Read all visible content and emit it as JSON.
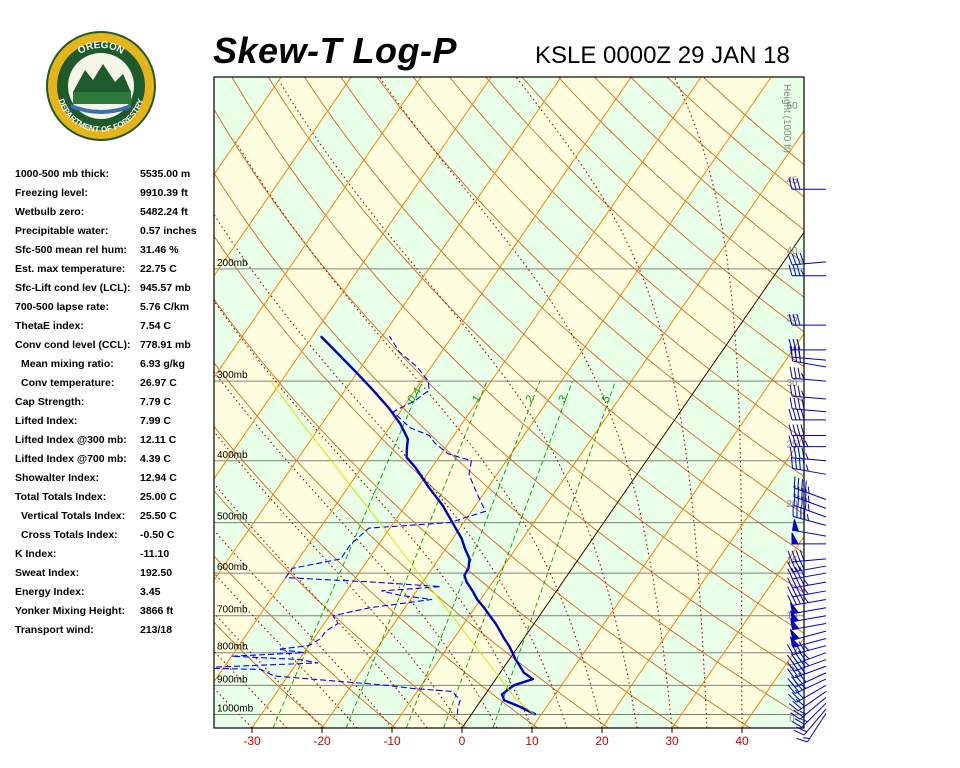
{
  "header": {
    "title": "Skew-T Log-P",
    "station": "KSLE 0000Z 29 JAN 18",
    "logo_text_top": "OREGON",
    "logo_text_bottom": "DEPARTMENT OF FORESTRY"
  },
  "indices": [
    {
      "label": "1000-500 mb thick:",
      "value": "5535.00 m"
    },
    {
      "label": "Freezing level:",
      "value": "9910.39 ft"
    },
    {
      "label": "Wetbulb zero:",
      "value": "5482.24 ft"
    },
    {
      "label": "Precipitable water:",
      "value": "0.57 inches"
    },
    {
      "label": "Sfc-500 mean rel hum:",
      "value": "31.46 %"
    },
    {
      "label": "Est. max temperature:",
      "value": "22.75 C"
    },
    {
      "label": "Sfc-Lift cond lev (LCL):",
      "value": "945.57 mb"
    },
    {
      "label": "700-500 lapse rate:",
      "value": "5.76 C/km"
    },
    {
      "label": "ThetaE index:",
      "value": "7.54 C"
    },
    {
      "label": "Conv cond level (CCL):",
      "value": "778.91 mb"
    },
    {
      "label": "Mean mixing ratio:",
      "value": "6.93 g/kg",
      "indent": true
    },
    {
      "label": "Conv temperature:",
      "value": "26.97 C",
      "indent": true
    },
    {
      "label": "Cap Strength:",
      "value": "7.79 C"
    },
    {
      "label": "Lifted Index:",
      "value": "7.99 C"
    },
    {
      "label": "Lifted Index @300 mb:",
      "value": "12.11 C"
    },
    {
      "label": "Lifted Index @700 mb:",
      "value": "4.39 C"
    },
    {
      "label": "Showalter Index:",
      "value": "12.94 C"
    },
    {
      "label": "Total Totals Index:",
      "value": "25.00 C"
    },
    {
      "label": "Vertical Totals Index:",
      "value": "25.50 C",
      "indent": true
    },
    {
      "label": "Cross Totals Index:",
      "value": "-0.50 C",
      "indent": true
    },
    {
      "label": "K Index:",
      "value": "-11.10"
    },
    {
      "label": "Sweat Index:",
      "value": "192.50"
    },
    {
      "label": "Energy Index:",
      "value": "3.45"
    },
    {
      "label": "Yonker Mixing Height:",
      "value": "3866 ft"
    },
    {
      "label": "Transport wind:",
      "value": "213/18"
    }
  ],
  "colors": {
    "temperature": "#0000c8",
    "dewpoint": "#0000ff",
    "parcel": "#e0e000",
    "isotherm": "#ff8000",
    "dry_adiabat": "#d2691e",
    "moist_adiabat": "#b00000",
    "mixing_ratio": "#00a000",
    "isobar": "#808080",
    "band_yellow": "#ffffe0",
    "band_green": "#e8ffe8",
    "x_tick_text": "#cc0000"
  },
  "chart_data": {
    "type": "line",
    "title": "Skew-T Log-P",
    "xlabel": "",
    "ylabel": "",
    "x_unit": "C",
    "xlim": [
      -35,
      48
    ],
    "ylim": [
      1050,
      100
    ],
    "y_scale": "log",
    "x_ticks": [
      -30,
      -20,
      -10,
      0,
      10,
      20,
      30,
      40
    ],
    "x_tick_labels": [
      "-30",
      "-20",
      "-10",
      "0",
      "10",
      "20",
      "30",
      "40"
    ],
    "pressure_levels": [
      200,
      300,
      400,
      500,
      600,
      700,
      800,
      900,
      1000
    ],
    "pressure_labels": [
      "200mb",
      "300mb",
      "400mb",
      "500mb",
      "600mb",
      "700mb",
      "800mb",
      "900mb",
      "1000mb"
    ],
    "height_axis": {
      "label": "Height (1000 ft)",
      "ticks": [
        0,
        5,
        10,
        15,
        20,
        25,
        30,
        35,
        40,
        45,
        50
      ],
      "tick_labels": [
        "0",
        "5",
        "10",
        "15",
        "20",
        "25",
        "30",
        "35",
        "40",
        "45",
        "50"
      ]
    },
    "mixing_ratio_labels": [
      {
        "value": 0.4,
        "text": "0.4"
      },
      {
        "value": 1,
        "text": "1"
      },
      {
        "value": 2,
        "text": "2"
      },
      {
        "value": 3,
        "text": "3"
      },
      {
        "value": 5,
        "text": "5"
      }
    ],
    "series": [
      {
        "role": "temperature",
        "points": [
          [
            1000,
            9.2
          ],
          [
            970,
            5.9
          ],
          [
            950,
            3.3
          ],
          [
            930,
            2.4
          ],
          [
            900,
            3.2
          ],
          [
            880,
            5.3
          ],
          [
            860,
            3.4
          ],
          [
            840,
            2.2
          ],
          [
            820,
            0.9
          ],
          [
            800,
            -0.2
          ],
          [
            780,
            -1.4
          ],
          [
            760,
            -2.8
          ],
          [
            740,
            -4.1
          ],
          [
            720,
            -5.5
          ],
          [
            700,
            -7.1
          ],
          [
            680,
            -8.7
          ],
          [
            660,
            -10.5
          ],
          [
            640,
            -12.0
          ],
          [
            620,
            -13.7
          ],
          [
            605,
            -14.7
          ],
          [
            590,
            -14.8
          ],
          [
            570,
            -15.6
          ],
          [
            550,
            -17.2
          ],
          [
            530,
            -18.7
          ],
          [
            500,
            -21.6
          ],
          [
            470,
            -24.7
          ],
          [
            440,
            -28.5
          ],
          [
            410,
            -32.3
          ],
          [
            395,
            -34.6
          ],
          [
            380,
            -35.6
          ],
          [
            370,
            -36.2
          ],
          [
            350,
            -38.8
          ],
          [
            330,
            -42.1
          ],
          [
            310,
            -46.0
          ],
          [
            290,
            -50.3
          ],
          [
            270,
            -55.0
          ],
          [
            255,
            -58.8
          ]
        ]
      },
      {
        "role": "dewpoint",
        "points": [
          [
            1000,
            -2.0
          ],
          [
            980,
            -2.5
          ],
          [
            950,
            -3.0
          ],
          [
            920,
            -5.0
          ],
          [
            910,
            -11.0
          ],
          [
            900,
            -15.0
          ],
          [
            870,
            -32.0
          ],
          [
            850,
            -34.5
          ],
          [
            845,
            -44.0
          ],
          [
            830,
            -27.0
          ],
          [
            820,
            -30.0
          ],
          [
            810,
            -40.0
          ],
          [
            800,
            -30.0
          ],
          [
            790,
            -34.0
          ],
          [
            780,
            -30.0
          ],
          [
            760,
            -29.0
          ],
          [
            740,
            -29.0
          ],
          [
            720,
            -28.0
          ],
          [
            700,
            -29.5
          ],
          [
            680,
            -25.0
          ],
          [
            660,
            -17.0
          ],
          [
            650,
            -22.0
          ],
          [
            640,
            -25.0
          ],
          [
            630,
            -17.0
          ],
          [
            620,
            -27.0
          ],
          [
            610,
            -40.0
          ],
          [
            590,
            -40.0
          ],
          [
            570,
            -34.0
          ],
          [
            540,
            -34.0
          ],
          [
            510,
            -33.0
          ],
          [
            500,
            -22.0
          ],
          [
            480,
            -18.0
          ],
          [
            460,
            -20.0
          ],
          [
            440,
            -22.0
          ],
          [
            420,
            -24.0
          ],
          [
            400,
            -25.0
          ],
          [
            390,
            -29.0
          ],
          [
            375,
            -32.0
          ],
          [
            365,
            -33.5
          ],
          [
            355,
            -37.0
          ],
          [
            345,
            -39.0
          ],
          [
            335,
            -41.0
          ],
          [
            322,
            -39.0
          ],
          [
            310,
            -38.0
          ],
          [
            300,
            -39.0
          ],
          [
            285,
            -42.0
          ],
          [
            270,
            -46.0
          ],
          [
            255,
            -49.0
          ]
        ]
      },
      {
        "role": "parcel",
        "points": [
          [
            1000,
            9.0
          ],
          [
            960,
            6.0
          ],
          [
            945,
            4.8
          ],
          [
            900,
            2.0
          ],
          [
            850,
            -1.3
          ],
          [
            800,
            -4.8
          ],
          [
            750,
            -8.5
          ],
          [
            700,
            -12.5
          ],
          [
            650,
            -16.8
          ],
          [
            600,
            -21.5
          ],
          [
            550,
            -26.5
          ],
          [
            500,
            -32.0
          ],
          [
            450,
            -38.2
          ],
          [
            400,
            -45.0
          ],
          [
            350,
            -52.8
          ],
          [
            300,
            -61.5
          ]
        ]
      }
    ],
    "wind_barbs": [
      {
        "pressure": 996,
        "direction": 213,
        "speed": 18
      },
      {
        "pressure": 980,
        "direction": 220,
        "speed": 20
      },
      {
        "pressure": 960,
        "direction": 225,
        "speed": 25
      },
      {
        "pressure": 940,
        "direction": 230,
        "speed": 25
      },
      {
        "pressure": 920,
        "direction": 235,
        "speed": 30
      },
      {
        "pressure": 900,
        "direction": 240,
        "speed": 30
      },
      {
        "pressure": 880,
        "direction": 245,
        "speed": 35
      },
      {
        "pressure": 860,
        "direction": 245,
        "speed": 40
      },
      {
        "pressure": 840,
        "direction": 250,
        "speed": 40
      },
      {
        "pressure": 820,
        "direction": 250,
        "speed": 45
      },
      {
        "pressure": 800,
        "direction": 250,
        "speed": 45
      },
      {
        "pressure": 780,
        "direction": 255,
        "speed": 45
      },
      {
        "pressure": 760,
        "direction": 255,
        "speed": 50
      },
      {
        "pressure": 740,
        "direction": 255,
        "speed": 50
      },
      {
        "pressure": 720,
        "direction": 260,
        "speed": 50
      },
      {
        "pressure": 700,
        "direction": 260,
        "speed": 50
      },
      {
        "pressure": 680,
        "direction": 260,
        "speed": 50
      },
      {
        "pressure": 660,
        "direction": 260,
        "speed": 45
      },
      {
        "pressure": 640,
        "direction": 260,
        "speed": 45
      },
      {
        "pressure": 620,
        "direction": 260,
        "speed": 45
      },
      {
        "pressure": 600,
        "direction": 260,
        "speed": 40
      },
      {
        "pressure": 585,
        "direction": 260,
        "speed": 40
      },
      {
        "pressure": 570,
        "direction": 265,
        "speed": 40
      },
      {
        "pressure": 540,
        "direction": 270,
        "speed": 50
      },
      {
        "pressure": 525,
        "direction": 280,
        "speed": 50
      },
      {
        "pressure": 505,
        "direction": 285,
        "speed": 45
      },
      {
        "pressure": 490,
        "direction": 290,
        "speed": 45
      },
      {
        "pressure": 475,
        "direction": 290,
        "speed": 45
      },
      {
        "pressure": 460,
        "direction": 290,
        "speed": 45
      },
      {
        "pressure": 420,
        "direction": 280,
        "speed": 45
      },
      {
        "pressure": 400,
        "direction": 275,
        "speed": 45
      },
      {
        "pressure": 380,
        "direction": 270,
        "speed": 45
      },
      {
        "pressure": 365,
        "direction": 270,
        "speed": 40
      },
      {
        "pressure": 345,
        "direction": 270,
        "speed": 40
      },
      {
        "pressure": 335,
        "direction": 275,
        "speed": 40
      },
      {
        "pressure": 320,
        "direction": 275,
        "speed": 35
      },
      {
        "pressure": 300,
        "direction": 275,
        "speed": 35
      },
      {
        "pressure": 285,
        "direction": 280,
        "speed": 30
      },
      {
        "pressure": 278,
        "direction": 275,
        "speed": 30
      },
      {
        "pressure": 268,
        "direction": 270,
        "speed": 30
      },
      {
        "pressure": 245,
        "direction": 270,
        "speed": 30
      },
      {
        "pressure": 205,
        "direction": 270,
        "speed": 35
      },
      {
        "pressure": 195,
        "direction": 265,
        "speed": 40
      },
      {
        "pressure": 150,
        "direction": 270,
        "speed": 30
      }
    ],
    "grid": true,
    "legend": "none"
  }
}
